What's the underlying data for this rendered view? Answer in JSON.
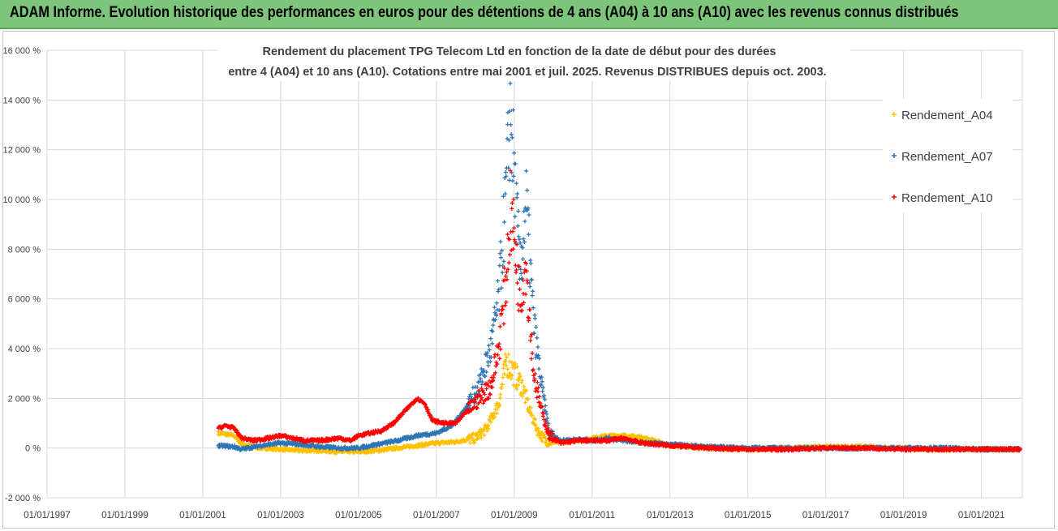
{
  "banner": {
    "text": "ADAM Informe. Evolution historique des performances en euros pour des détentions de 4 ans (A04) à 10 ans (A10) avec les revenus connus distribués",
    "color": "#7dc57a"
  },
  "chart_data": {
    "type": "scatter",
    "title_line1": "Rendement du placement TPG Telecom Ltd en fonction de la date de début pour des durées",
    "title_line2": "entre 4 (A04) et 10 ans (A10). Cotations entre mai 2001 et juil. 2025. Revenus DISTRIBUES depuis oct. 2003.",
    "x_ticks": [
      "01/01/1997",
      "01/01/1999",
      "01/01/2001",
      "01/01/2003",
      "01/01/2005",
      "01/01/2007",
      "01/01/2009",
      "01/01/2011",
      "01/01/2013",
      "01/01/2015",
      "01/01/2017",
      "01/01/2019",
      "01/01/2021"
    ],
    "xlim": [
      1997.0,
      2022.05
    ],
    "y_ticks": [
      "-2 000 %",
      "0 %",
      "2 000 %",
      "4 000 %",
      "6 000 %",
      "8 000 %",
      "10 000 %",
      "12 000 %",
      "14 000 %",
      "16 000 %"
    ],
    "ylim": [
      -2000,
      16000
    ],
    "grid": true,
    "legend_position": "right",
    "series": [
      {
        "name": "Rendement_A04",
        "color": "#ffc000",
        "points": [
          [
            2001.4,
            600
          ],
          [
            2001.8,
            500
          ],
          [
            2002.0,
            150
          ],
          [
            2002.5,
            0
          ],
          [
            2003.0,
            -50
          ],
          [
            2003.5,
            -100
          ],
          [
            2004.0,
            -100
          ],
          [
            2004.5,
            -150
          ],
          [
            2005.0,
            -150
          ],
          [
            2005.5,
            -100
          ],
          [
            2006.0,
            0
          ],
          [
            2006.5,
            100
          ],
          [
            2007.0,
            200
          ],
          [
            2007.5,
            250
          ],
          [
            2008.0,
            400
          ],
          [
            2008.3,
            800
          ],
          [
            2008.6,
            1800
          ],
          [
            2008.8,
            3500
          ],
          [
            2009.0,
            3000
          ],
          [
            2009.2,
            2500
          ],
          [
            2009.4,
            1500
          ],
          [
            2009.6,
            700
          ],
          [
            2009.8,
            300
          ],
          [
            2010.2,
            200
          ],
          [
            2010.6,
            300
          ],
          [
            2011.0,
            400
          ],
          [
            2011.4,
            500
          ],
          [
            2011.8,
            500
          ],
          [
            2012.2,
            450
          ],
          [
            2012.6,
            300
          ],
          [
            2013.0,
            100
          ],
          [
            2013.5,
            50
          ],
          [
            2014.0,
            0
          ],
          [
            2015.0,
            -50
          ],
          [
            2016.0,
            0
          ],
          [
            2017.0,
            50
          ],
          [
            2018.0,
            50
          ],
          [
            2019.0,
            0
          ],
          [
            2020.0,
            -50
          ],
          [
            2021.0,
            -50
          ],
          [
            2022.0,
            -50
          ]
        ]
      },
      {
        "name": "Rendement_A07",
        "color": "#2e75b6",
        "points": [
          [
            2001.4,
            100
          ],
          [
            2001.8,
            50
          ],
          [
            2002.0,
            -50
          ],
          [
            2002.5,
            100
          ],
          [
            2003.0,
            200
          ],
          [
            2003.5,
            150
          ],
          [
            2004.0,
            50
          ],
          [
            2004.5,
            0
          ],
          [
            2005.0,
            0
          ],
          [
            2005.5,
            150
          ],
          [
            2006.0,
            300
          ],
          [
            2006.5,
            500
          ],
          [
            2007.0,
            600
          ],
          [
            2007.4,
            900
          ],
          [
            2007.8,
            1700
          ],
          [
            2008.1,
            2500
          ],
          [
            2008.4,
            4000
          ],
          [
            2008.6,
            6000
          ],
          [
            2008.8,
            10500
          ],
          [
            2008.9,
            13500
          ],
          [
            2009.0,
            11000
          ],
          [
            2009.15,
            7000
          ],
          [
            2009.3,
            10000
          ],
          [
            2009.5,
            5000
          ],
          [
            2009.7,
            2500
          ],
          [
            2009.9,
            600
          ],
          [
            2010.2,
            300
          ],
          [
            2010.6,
            350
          ],
          [
            2011.0,
            300
          ],
          [
            2011.4,
            400
          ],
          [
            2011.8,
            300
          ],
          [
            2012.4,
            200
          ],
          [
            2013.0,
            150
          ],
          [
            2013.5,
            100
          ],
          [
            2014.0,
            50
          ],
          [
            2015.0,
            0
          ],
          [
            2016.0,
            0
          ],
          [
            2017.0,
            0
          ],
          [
            2018.0,
            0
          ],
          [
            2019.0,
            0
          ],
          [
            2020.0,
            0
          ],
          [
            2021.0,
            -50
          ],
          [
            2022.0,
            -50
          ]
        ]
      },
      {
        "name": "Rendement_A10",
        "color": "#ff0000",
        "points": [
          [
            2001.4,
            800
          ],
          [
            2001.6,
            900
          ],
          [
            2001.8,
            800
          ],
          [
            2002.0,
            400
          ],
          [
            2002.3,
            300
          ],
          [
            2002.7,
            400
          ],
          [
            2003.0,
            500
          ],
          [
            2003.3,
            400
          ],
          [
            2003.6,
            300
          ],
          [
            2004.0,
            300
          ],
          [
            2004.5,
            400
          ],
          [
            2004.8,
            300
          ],
          [
            2005.0,
            500
          ],
          [
            2005.3,
            600
          ],
          [
            2005.6,
            700
          ],
          [
            2005.9,
            1000
          ],
          [
            2006.2,
            1500
          ],
          [
            2006.5,
            2000
          ],
          [
            2006.7,
            1800
          ],
          [
            2006.9,
            1100
          ],
          [
            2007.2,
            1000
          ],
          [
            2007.5,
            1000
          ],
          [
            2007.8,
            1500
          ],
          [
            2008.1,
            2000
          ],
          [
            2008.4,
            2500
          ],
          [
            2008.6,
            4000
          ],
          [
            2008.8,
            7000
          ],
          [
            2008.9,
            9500
          ],
          [
            2009.0,
            8500
          ],
          [
            2009.15,
            6000
          ],
          [
            2009.3,
            7500
          ],
          [
            2009.5,
            3000
          ],
          [
            2009.7,
            1500
          ],
          [
            2009.9,
            500
          ],
          [
            2010.2,
            200
          ],
          [
            2010.6,
            300
          ],
          [
            2011.0,
            300
          ],
          [
            2011.4,
            300
          ],
          [
            2011.8,
            400
          ],
          [
            2012.3,
            200
          ],
          [
            2013.0,
            100
          ],
          [
            2014.0,
            0
          ],
          [
            2015.0,
            -50
          ],
          [
            2016.0,
            -50
          ],
          [
            2017.0,
            0
          ],
          [
            2018.0,
            0
          ],
          [
            2019.0,
            -50
          ],
          [
            2020.0,
            -50
          ],
          [
            2021.0,
            -50
          ],
          [
            2022.0,
            -50
          ]
        ]
      }
    ]
  }
}
